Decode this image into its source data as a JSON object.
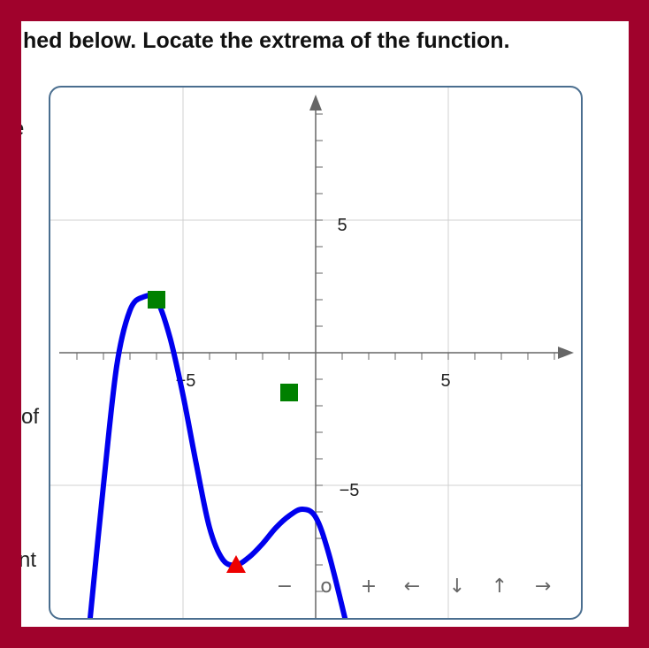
{
  "instructions": "hed below. Locate the extrema of the function.",
  "side_fragments": [
    "e",
    "of",
    "nt"
  ],
  "graph": {
    "x_tick_labels": [
      "−5",
      "5"
    ],
    "y_tick_labels": [
      "5",
      "−5"
    ],
    "controls": [
      {
        "name": "zoom-out-button",
        "label": "−"
      },
      {
        "name": "reset-button",
        "label": "o"
      },
      {
        "name": "zoom-in-button",
        "label": "+"
      },
      {
        "name": "pan-left-button",
        "label": "←"
      },
      {
        "name": "pan-down-button",
        "label": "↓"
      },
      {
        "name": "pan-up-button",
        "label": "↑"
      },
      {
        "name": "pan-right-button",
        "label": "→"
      }
    ],
    "colors": {
      "curve": "#0000ee",
      "marker_square": "#008000",
      "marker_triangle": "#ee0000",
      "axis": "#666666",
      "grid": "#d0d0d0",
      "border": "#4a6e8f"
    },
    "markers": [
      {
        "name": "local-max-marker",
        "shape": "square",
        "x": -6,
        "y": 2
      },
      {
        "name": "placed-marker",
        "shape": "square",
        "x": -1,
        "y": -1.5
      },
      {
        "name": "local-min-marker",
        "shape": "triangle",
        "x": -3,
        "y": -8
      }
    ]
  }
}
